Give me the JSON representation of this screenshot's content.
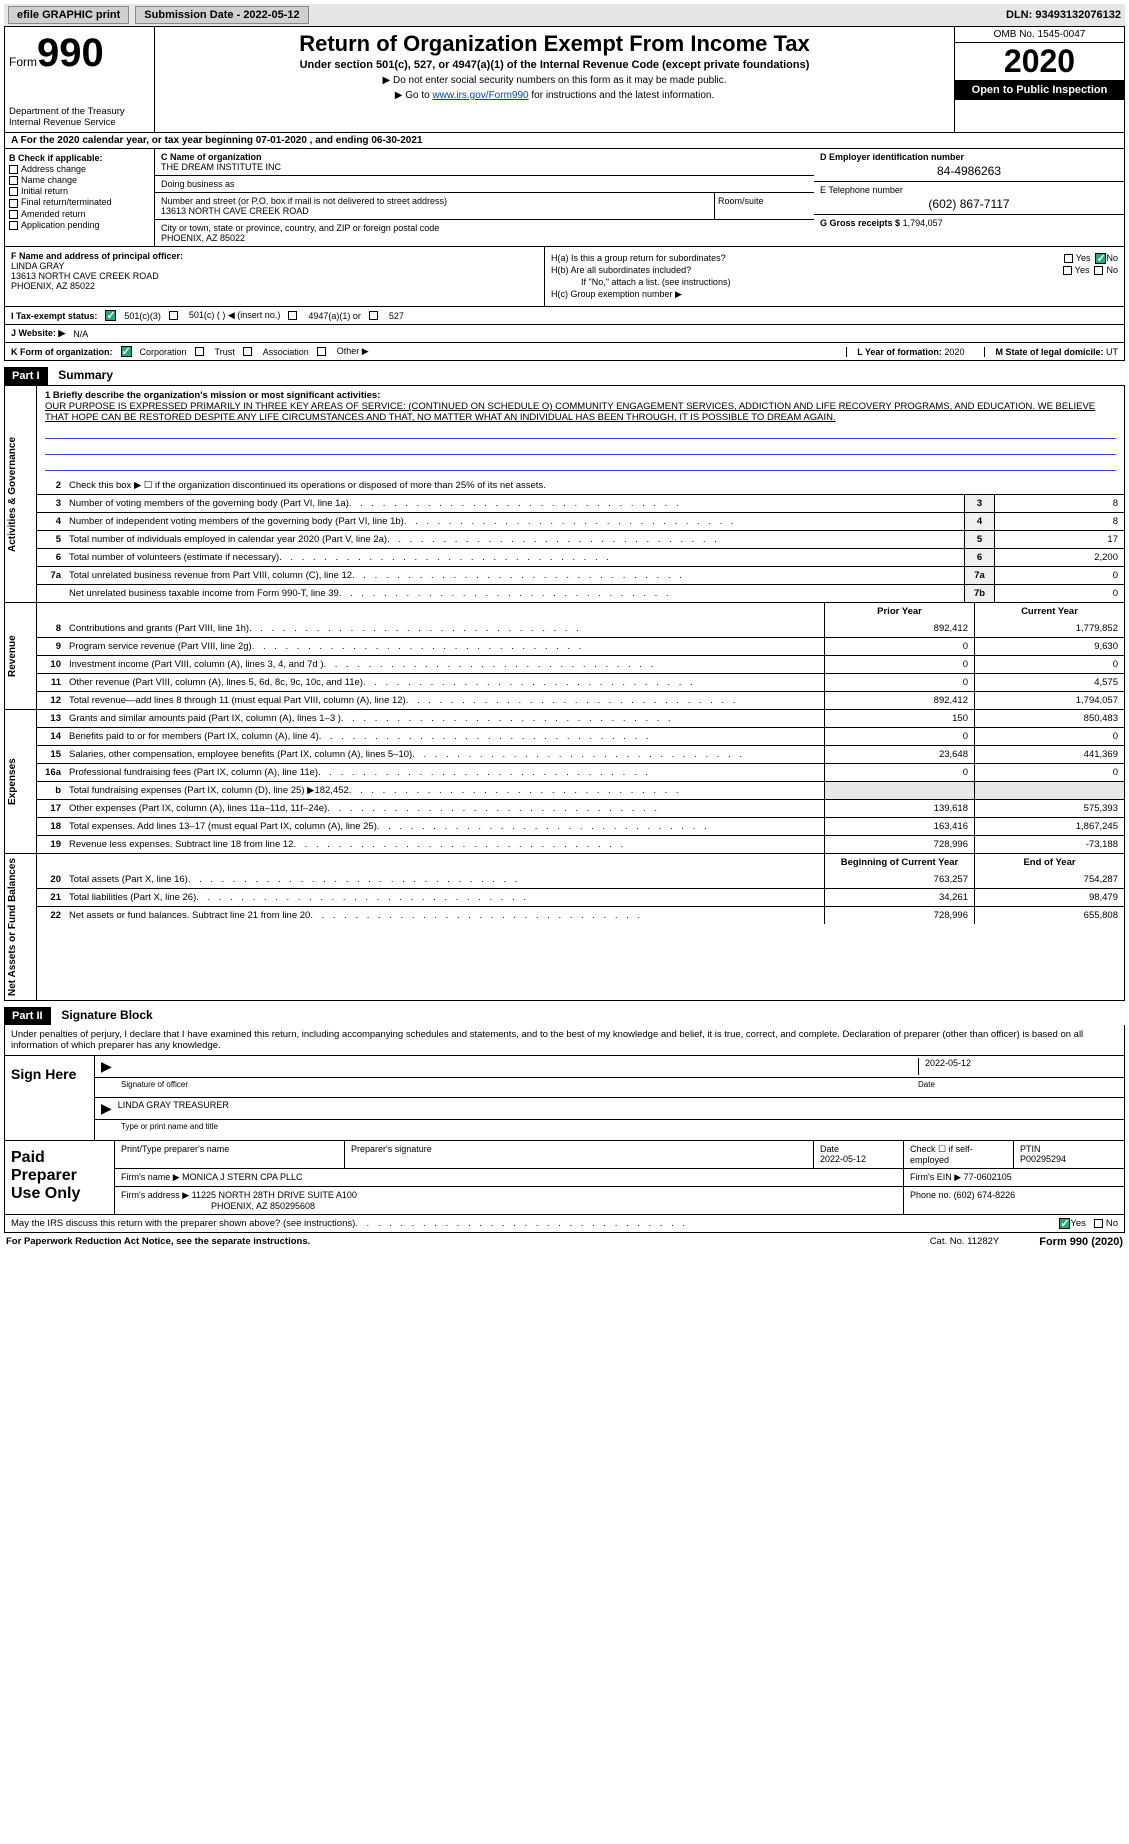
{
  "topbar": {
    "efile": "efile GRAPHIC print",
    "subdate_lbl": "Submission Date - 2022-05-12",
    "dln": "DLN: 93493132076132"
  },
  "header": {
    "form_word": "Form",
    "form_num": "990",
    "dept": "Department of the Treasury",
    "irs": "Internal Revenue Service",
    "title": "Return of Organization Exempt From Income Tax",
    "subtitle": "Under section 501(c), 527, or 4947(a)(1) of the Internal Revenue Code (except private foundations)",
    "ssn_warn": "▶ Do not enter social security numbers on this form as it may be made public.",
    "goto": "▶ Go to www.irs.gov/Form990 for instructions and the latest information.",
    "goto_link": "www.irs.gov/Form990",
    "omb": "OMB No. 1545-0047",
    "year": "2020",
    "openpub": "Open to Public Inspection"
  },
  "lineA": "A For the 2020 calendar year, or tax year beginning 07-01-2020    , and ending 06-30-2021",
  "B": {
    "hdr": "B Check if applicable:",
    "items": [
      "Address change",
      "Name change",
      "Initial return",
      "Final return/terminated",
      "Amended return",
      "Application pending"
    ]
  },
  "C": {
    "name_lbl": "C Name of organization",
    "name": "THE DREAM INSTITUTE INC",
    "dba_lbl": "Doing business as",
    "dba": "",
    "addr_lbl": "Number and street (or P.O. box if mail is not delivered to street address)",
    "room_lbl": "Room/suite",
    "addr": "13613 NORTH CAVE CREEK ROAD",
    "city_lbl": "City or town, state or province, country, and ZIP or foreign postal code",
    "city": "PHOENIX, AZ  85022"
  },
  "D": {
    "lbl": "D Employer identification number",
    "val": "84-4986263"
  },
  "E": {
    "lbl": "E Telephone number",
    "val": "(602) 867-7117"
  },
  "G": {
    "lbl": "G Gross receipts $",
    "val": "1,794,057"
  },
  "F": {
    "lbl": "F  Name and address of principal officer:",
    "name": "LINDA GRAY",
    "addr1": "13613 NORTH CAVE CREEK ROAD",
    "addr2": "PHOENIX, AZ  85022"
  },
  "H": {
    "a_lbl": "H(a)  Is this a group return for subordinates?",
    "b_lbl": "H(b)  Are all subordinates included?",
    "b_note": "If \"No,\" attach a list. (see instructions)",
    "c_lbl": "H(c)  Group exemption number ▶",
    "yes": "Yes",
    "no": "No"
  },
  "I": {
    "lbl": "I    Tax-exempt status:",
    "opt1": "501(c)(3)",
    "opt2": "501(c) (  ) ◀ (insert no.)",
    "opt3": "4947(a)(1) or",
    "opt4": "527"
  },
  "J": {
    "lbl": "J   Website: ▶",
    "val": "N/A"
  },
  "K": {
    "lbl": "K Form of organization:",
    "opts": [
      "Corporation",
      "Trust",
      "Association",
      "Other ▶"
    ]
  },
  "L": {
    "lbl": "L Year of formation:",
    "val": "2020"
  },
  "M": {
    "lbl": "M State of legal domicile:",
    "val": "UT"
  },
  "part1": {
    "hdr": "Part I",
    "title": "Summary",
    "side1": "Activities & Governance",
    "side2": "Revenue",
    "side3": "Expenses",
    "side4": "Net Assets or Fund Balances",
    "l1_lbl": "1  Briefly describe the organization's mission or most significant activities:",
    "l1_txt": "OUR PURPOSE IS EXPRESSED PRIMARILY IN THREE KEY AREAS OF SERVICE: (CONTINUED ON SCHEDULE O) COMMUNITY ENGAGEMENT SERVICES, ADDICTION AND LIFE RECOVERY PROGRAMS, AND EDUCATION. WE BELIEVE THAT HOPE CAN BE RESTORED DESPITE ANY LIFE CIRCUMSTANCES AND THAT, NO MATTER WHAT AN INDIVIDUAL HAS BEEN THROUGH, IT IS POSSIBLE TO DREAM AGAIN.",
    "l2": "Check this box ▶ ☐ if the organization discontinued its operations or disposed of more than 25% of its net assets.",
    "rows_gov": [
      {
        "n": "3",
        "t": "Number of voting members of the governing body (Part VI, line 1a)",
        "box": "3",
        "v": "8"
      },
      {
        "n": "4",
        "t": "Number of independent voting members of the governing body (Part VI, line 1b)",
        "box": "4",
        "v": "8"
      },
      {
        "n": "5",
        "t": "Total number of individuals employed in calendar year 2020 (Part V, line 2a)",
        "box": "5",
        "v": "17"
      },
      {
        "n": "6",
        "t": "Total number of volunteers (estimate if necessary)",
        "box": "6",
        "v": "2,200"
      },
      {
        "n": "7a",
        "t": "Total unrelated business revenue from Part VIII, column (C), line 12",
        "box": "7a",
        "v": "0"
      },
      {
        "n": "",
        "t": "Net unrelated business taxable income from Form 990-T, line 39",
        "box": "7b",
        "v": "0"
      }
    ],
    "prior_lbl": "Prior Year",
    "curr_lbl": "Current Year",
    "rows_rev": [
      {
        "n": "8",
        "t": "Contributions and grants (Part VIII, line 1h)",
        "p": "892,412",
        "c": "1,779,852"
      },
      {
        "n": "9",
        "t": "Program service revenue (Part VIII, line 2g)",
        "p": "0",
        "c": "9,630"
      },
      {
        "n": "10",
        "t": "Investment income (Part VIII, column (A), lines 3, 4, and 7d )",
        "p": "0",
        "c": "0"
      },
      {
        "n": "11",
        "t": "Other revenue (Part VIII, column (A), lines 5, 6d, 8c, 9c, 10c, and 11e)",
        "p": "0",
        "c": "4,575"
      },
      {
        "n": "12",
        "t": "Total revenue—add lines 8 through 11 (must equal Part VIII, column (A), line 12)",
        "p": "892,412",
        "c": "1,794,057"
      }
    ],
    "rows_exp": [
      {
        "n": "13",
        "t": "Grants and similar amounts paid (Part IX, column (A), lines 1–3 )",
        "p": "150",
        "c": "850,483"
      },
      {
        "n": "14",
        "t": "Benefits paid to or for members (Part IX, column (A), line 4)",
        "p": "0",
        "c": "0"
      },
      {
        "n": "15",
        "t": "Salaries, other compensation, employee benefits (Part IX, column (A), lines 5–10)",
        "p": "23,648",
        "c": "441,369"
      },
      {
        "n": "16a",
        "t": "Professional fundraising fees (Part IX, column (A), line 11e)",
        "p": "0",
        "c": "0"
      },
      {
        "n": "b",
        "t": "Total fundraising expenses (Part IX, column (D), line 25) ▶182,452",
        "p": "",
        "c": ""
      },
      {
        "n": "17",
        "t": "Other expenses (Part IX, column (A), lines 11a–11d, 11f–24e)",
        "p": "139,618",
        "c": "575,393"
      },
      {
        "n": "18",
        "t": "Total expenses. Add lines 13–17 (must equal Part IX, column (A), line 25)",
        "p": "163,416",
        "c": "1,867,245"
      },
      {
        "n": "19",
        "t": "Revenue less expenses. Subtract line 18 from line 12",
        "p": "728,996",
        "c": "-73,188"
      }
    ],
    "begin_lbl": "Beginning of Current Year",
    "end_lbl": "End of Year",
    "rows_net": [
      {
        "n": "20",
        "t": "Total assets (Part X, line 16)",
        "p": "763,257",
        "c": "754,287"
      },
      {
        "n": "21",
        "t": "Total liabilities (Part X, line 26)",
        "p": "34,261",
        "c": "98,479"
      },
      {
        "n": "22",
        "t": "Net assets or fund balances. Subtract line 21 from line 20",
        "p": "728,996",
        "c": "655,808"
      }
    ]
  },
  "part2": {
    "hdr": "Part II",
    "title": "Signature Block",
    "decl": "Under penalties of perjury, I declare that I have examined this return, including accompanying schedules and statements, and to the best of my knowledge and belief, it is true, correct, and complete. Declaration of preparer (other than officer) is based on all information of which preparer has any knowledge.",
    "sign_lbl": "Sign Here",
    "sig_officer": "Signature of officer",
    "sig_date": "Date",
    "sig_date_val": "2022-05-12",
    "officer_name": "LINDA GRAY  TREASURER",
    "type_name": "Type or print name and title",
    "paid_lbl": "Paid Preparer Use Only",
    "prep_name_lbl": "Print/Type preparer's name",
    "prep_sig_lbl": "Preparer's signature",
    "prep_date_lbl": "Date",
    "prep_date": "2022-05-12",
    "self_lbl": "Check ☐ if self-employed",
    "ptin_lbl": "PTIN",
    "ptin": "P00295294",
    "firm_name_lbl": "Firm's name   ▶",
    "firm_name": "MONICA J STERN CPA PLLC",
    "firm_ein_lbl": "Firm's EIN ▶",
    "firm_ein": "77-0602105",
    "firm_addr_lbl": "Firm's address ▶",
    "firm_addr1": "11225 NORTH 28TH DRIVE SUITE A100",
    "firm_addr2": "PHOENIX, AZ  850295608",
    "firm_phone_lbl": "Phone no.",
    "firm_phone": "(602) 674-8226",
    "discuss": "May the IRS discuss this return with the preparer shown above? (see instructions)",
    "yes": "Yes",
    "no": "No"
  },
  "footer": {
    "pra": "For Paperwork Reduction Act Notice, see the separate instructions.",
    "cat": "Cat. No. 11282Y",
    "form": "Form 990 (2020)"
  },
  "colors": {
    "link": "#0645ad",
    "check_green": "#2aa74a",
    "uline_blue": "#2a4bd7"
  }
}
